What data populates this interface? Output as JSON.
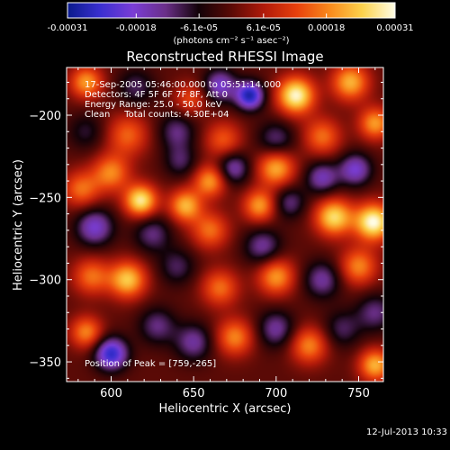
{
  "chart_data": {
    "type": "heatmap",
    "title": "Reconstructed RHESSI Image",
    "xlabel": "Heliocentric X (arcsec)",
    "ylabel": "Heliocentric Y (arcsec)",
    "xlim": [
      573,
      765
    ],
    "ylim": [
      -362,
      -171
    ],
    "x_ticks": [
      600,
      650,
      700,
      750
    ],
    "y_ticks": [
      -200,
      -250,
      -300,
      -350
    ],
    "colorbar": {
      "min": -0.00031,
      "max": 0.00031,
      "tick_values": [
        -0.00031,
        -0.00018,
        -6.1e-05,
        6.1e-05,
        0.00018,
        0.00031
      ],
      "tick_labels": [
        "-0.00031",
        "-0.00018",
        "-6.1e-05",
        "6.1e-05",
        "0.00018",
        "0.00031"
      ],
      "unit_label": "(photons cm⁻² s⁻¹ asec⁻²)",
      "colormap": [
        "#0a1a8c",
        "#3a2fd0",
        "#7a3dd6",
        "#6a2f88",
        "#120208",
        "#5a0a06",
        "#b11a0a",
        "#e8400c",
        "#f98a1c",
        "#fcd24c",
        "#fffde6"
      ]
    },
    "annotations": [
      "17-Sep-2005 05:46:00.000 to 05:51:14.000",
      "Detectors: 4F 5F 6F 7F 8F, Att 0",
      "Energy Range: 25.0 - 50.0 keV",
      "Clean     Total counts: 4.30E+04",
      "Position of Peak = [759,-265]"
    ],
    "peak_position": [
      759,
      -265
    ],
    "peak_value": 0.00031,
    "sources": [
      {
        "x": 585,
        "y": -180,
        "amp": 0.0002,
        "sigma": 7
      },
      {
        "x": 615,
        "y": -183,
        "amp": -0.0001,
        "sigma": 8
      },
      {
        "x": 648,
        "y": -190,
        "amp": 0.00012,
        "sigma": 7
      },
      {
        "x": 666,
        "y": -182,
        "amp": -0.00018,
        "sigma": 7
      },
      {
        "x": 684,
        "y": -188,
        "amp": -0.00028,
        "sigma": 6
      },
      {
        "x": 712,
        "y": -188,
        "amp": 0.0003,
        "sigma": 8
      },
      {
        "x": 745,
        "y": -180,
        "amp": 0.00022,
        "sigma": 8
      },
      {
        "x": 760,
        "y": -205,
        "amp": 0.0002,
        "sigma": 7
      },
      {
        "x": 585,
        "y": -210,
        "amp": -8e-05,
        "sigma": 8
      },
      {
        "x": 610,
        "y": -212,
        "amp": 0.00015,
        "sigma": 9
      },
      {
        "x": 640,
        "y": -210,
        "amp": -0.00012,
        "sigma": 8
      },
      {
        "x": 668,
        "y": -215,
        "amp": 0.00014,
        "sigma": 8
      },
      {
        "x": 700,
        "y": -215,
        "amp": -0.00012,
        "sigma": 8
      },
      {
        "x": 728,
        "y": -213,
        "amp": 0.00016,
        "sigma": 8
      },
      {
        "x": 582,
        "y": -245,
        "amp": 0.00016,
        "sigma": 8
      },
      {
        "x": 600,
        "y": -235,
        "amp": 0.00018,
        "sigma": 8
      },
      {
        "x": 618,
        "y": -252,
        "amp": 0.00028,
        "sigma": 7
      },
      {
        "x": 642,
        "y": -228,
        "amp": -0.0001,
        "sigma": 7
      },
      {
        "x": 660,
        "y": -240,
        "amp": 0.0002,
        "sigma": 7
      },
      {
        "x": 674,
        "y": -232,
        "amp": -0.00016,
        "sigma": 7
      },
      {
        "x": 700,
        "y": -232,
        "amp": 0.00022,
        "sigma": 8
      },
      {
        "x": 728,
        "y": -238,
        "amp": -0.00016,
        "sigma": 7
      },
      {
        "x": 748,
        "y": -233,
        "amp": -0.00018,
        "sigma": 7
      },
      {
        "x": 645,
        "y": -255,
        "amp": 0.00022,
        "sigma": 7
      },
      {
        "x": 690,
        "y": -255,
        "amp": 0.0002,
        "sigma": 7
      },
      {
        "x": 708,
        "y": -253,
        "amp": -0.00012,
        "sigma": 7
      },
      {
        "x": 735,
        "y": -262,
        "amp": 0.00026,
        "sigma": 8
      },
      {
        "x": 759,
        "y": -265,
        "amp": 0.00031,
        "sigma": 8
      },
      {
        "x": 590,
        "y": -268,
        "amp": -0.00018,
        "sigma": 8
      },
      {
        "x": 625,
        "y": -272,
        "amp": -0.00012,
        "sigma": 8
      },
      {
        "x": 660,
        "y": -270,
        "amp": 0.00016,
        "sigma": 8
      },
      {
        "x": 692,
        "y": -280,
        "amp": -0.00014,
        "sigma": 8
      },
      {
        "x": 588,
        "y": -298,
        "amp": 0.00016,
        "sigma": 8
      },
      {
        "x": 610,
        "y": -300,
        "amp": 0.00024,
        "sigma": 8
      },
      {
        "x": 640,
        "y": -292,
        "amp": -0.0001,
        "sigma": 8
      },
      {
        "x": 666,
        "y": -305,
        "amp": 0.00016,
        "sigma": 8
      },
      {
        "x": 700,
        "y": -298,
        "amp": 0.0002,
        "sigma": 8
      },
      {
        "x": 728,
        "y": -300,
        "amp": -0.00014,
        "sigma": 8
      },
      {
        "x": 750,
        "y": -292,
        "amp": 0.00018,
        "sigma": 8
      },
      {
        "x": 760,
        "y": -320,
        "amp": -0.00012,
        "sigma": 8
      },
      {
        "x": 585,
        "y": -332,
        "amp": 0.00018,
        "sigma": 7
      },
      {
        "x": 600,
        "y": -345,
        "amp": -0.00026,
        "sigma": 7
      },
      {
        "x": 628,
        "y": -328,
        "amp": -0.00012,
        "sigma": 8
      },
      {
        "x": 650,
        "y": -338,
        "amp": -0.00014,
        "sigma": 8
      },
      {
        "x": 675,
        "y": -335,
        "amp": 0.00018,
        "sigma": 8
      },
      {
        "x": 700,
        "y": -330,
        "amp": -0.00014,
        "sigma": 8
      },
      {
        "x": 720,
        "y": -340,
        "amp": 0.00018,
        "sigma": 8
      },
      {
        "x": 740,
        "y": -330,
        "amp": -0.0001,
        "sigma": 8
      },
      {
        "x": 760,
        "y": -352,
        "amp": 0.00022,
        "sigma": 7
      }
    ]
  },
  "footer": {
    "timestamp": "12-Jul-2013 10:33"
  }
}
